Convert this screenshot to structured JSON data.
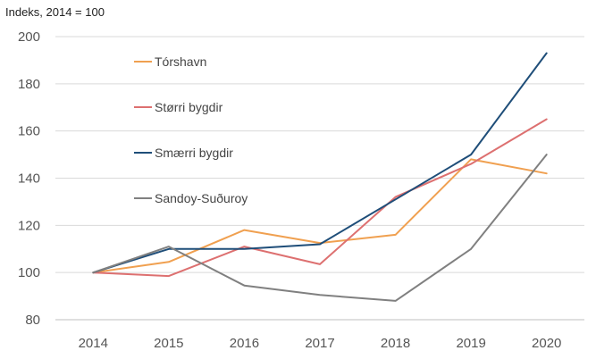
{
  "chart_data": {
    "type": "line",
    "ylabel": "Indeks, 2014 = 100",
    "categories": [
      "2014",
      "2015",
      "2016",
      "2017",
      "2018",
      "2019",
      "2020"
    ],
    "ylim": [
      80,
      200
    ],
    "yticks": [
      80,
      100,
      120,
      140,
      160,
      180,
      200
    ],
    "grid": true,
    "legend_position": "top-left",
    "series": [
      {
        "name": "Tórshavn",
        "color": "#f0a050",
        "values": [
          100,
          104.5,
          118,
          112.5,
          116,
          148,
          142
        ]
      },
      {
        "name": "Størri bygdir",
        "color": "#dd7070",
        "values": [
          100,
          98.5,
          111,
          103.5,
          132,
          146,
          165
        ]
      },
      {
        "name": "Smærri bygdir",
        "color": "#1f4e79",
        "values": [
          100,
          110,
          110,
          112,
          131,
          150,
          193
        ]
      },
      {
        "name": "Sandoy-Suðuroy",
        "color": "#808080",
        "values": [
          100,
          111,
          94.5,
          90.5,
          88,
          110,
          150
        ]
      }
    ]
  }
}
